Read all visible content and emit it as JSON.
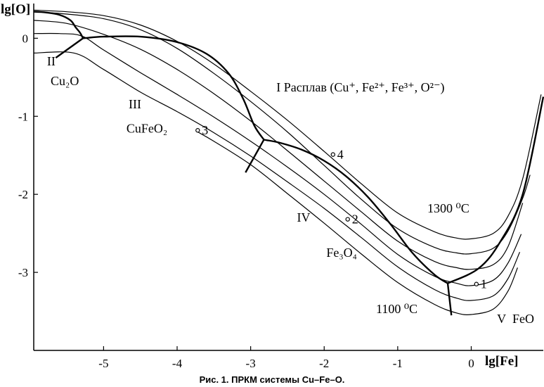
{
  "chart_data": {
    "type": "line",
    "xlabel": "lg[Fe]",
    "ylabel": "lg[O]",
    "xlim": [
      -5.95,
      0.98
    ],
    "ylim": [
      -4.0,
      0.4
    ],
    "x_ticks": [
      -5,
      -4,
      -3,
      -2,
      -1,
      0
    ],
    "x_tick_labels": [
      "-5",
      "-4",
      "-3",
      "-2",
      "-1",
      "0"
    ],
    "y_ticks": [
      0,
      -1,
      -2,
      -3
    ],
    "y_tick_labels": [
      "0",
      "-1",
      "-2",
      "-3"
    ],
    "grid": false,
    "isotherm_labels": {
      "top": "1300 ⁰C",
      "bottom": "1100 ⁰C"
    },
    "isotherms": [
      {
        "x": [
          -5.95,
          -5.5,
          -5.0,
          -4.5,
          -4.0,
          -3.5,
          -3.0,
          -2.5,
          -2.0,
          -1.5,
          -1.0,
          -0.5,
          -0.2,
          0.0,
          0.3,
          0.5,
          0.7,
          0.95
        ],
        "y": [
          0.36,
          0.34,
          0.29,
          0.17,
          -0.04,
          -0.33,
          -0.68,
          -1.05,
          -1.45,
          -1.86,
          -2.24,
          -2.48,
          -2.56,
          -2.57,
          -2.5,
          -2.28,
          -1.8,
          -0.72
        ]
      },
      {
        "x": [
          -5.95,
          -5.5,
          -5.0,
          -4.5,
          -4.0,
          -3.5,
          -3.0,
          -2.5,
          -2.0,
          -1.5,
          -1.0,
          -0.5,
          -0.2,
          0.0,
          0.3,
          0.5,
          0.7,
          0.8
        ],
        "y": [
          0.34,
          0.31,
          0.25,
          0.11,
          -0.13,
          -0.45,
          -0.81,
          -1.2,
          -1.63,
          -2.06,
          -2.44,
          -2.68,
          -2.75,
          -2.76,
          -2.69,
          -2.47,
          -2.05,
          -1.75
        ]
      },
      {
        "x": [
          -5.95,
          -5.5,
          -5.0,
          -4.5,
          -4.0,
          -3.5,
          -3.0,
          -2.5,
          -2.0,
          -1.5,
          -1.0,
          -0.5,
          -0.2,
          0.0,
          0.3,
          0.5,
          0.7
        ],
        "y": [
          0.23,
          0.19,
          0.05,
          -0.14,
          -0.4,
          -0.71,
          -1.06,
          -1.44,
          -1.83,
          -2.22,
          -2.6,
          -2.86,
          -2.94,
          -2.96,
          -2.9,
          -2.67,
          -2.11
        ]
      },
      {
        "x": [
          -5.95,
          -5.6,
          -5.3,
          -5.0,
          -4.5,
          -4.0,
          -3.5,
          -3.0,
          -2.5,
          -2.0,
          -1.5,
          -1.0,
          -0.5,
          -0.2,
          0.0,
          0.3,
          0.5,
          0.68
        ],
        "y": [
          0.06,
          0.06,
          0.03,
          -0.15,
          -0.44,
          -0.72,
          -1.01,
          -1.32,
          -1.65,
          -2.0,
          -2.38,
          -2.77,
          -3.05,
          -3.14,
          -3.17,
          -3.1,
          -2.88,
          -2.51
        ]
      },
      {
        "x": [
          -5.95,
          -5.4,
          -5.0,
          -4.5,
          -4.0,
          -3.5,
          -3.0,
          -2.5,
          -2.0,
          -1.5,
          -1.0,
          -0.5,
          -0.2,
          0.0,
          0.3,
          0.5,
          0.66
        ],
        "y": [
          -0.19,
          -0.19,
          -0.4,
          -0.69,
          -0.94,
          -1.21,
          -1.51,
          -1.84,
          -2.18,
          -2.55,
          -2.93,
          -3.22,
          -3.33,
          -3.36,
          -3.3,
          -3.08,
          -2.74
        ]
      },
      {
        "x": [
          -3.72,
          -3.5,
          -3.0,
          -2.5,
          -2.0,
          -1.5,
          -1.0,
          -0.5,
          -0.2,
          0.0,
          0.3,
          0.5,
          0.63
        ],
        "y": [
          -1.2,
          -1.32,
          -1.62,
          -1.99,
          -2.37,
          -2.76,
          -3.13,
          -3.41,
          -3.52,
          -3.54,
          -3.47,
          -3.24,
          -2.94
        ]
      }
    ],
    "phase_boundaries": [
      {
        "x": [
          -5.95,
          -5.78,
          -5.6,
          -5.45,
          -5.38,
          -5.32,
          -5.28
        ],
        "y": [
          0.34,
          0.33,
          0.3,
          0.23,
          0.14,
          0.07,
          0.0
        ]
      },
      {
        "x": [
          -5.28,
          -5.0,
          -4.5,
          -4.0,
          -3.6,
          -3.3,
          -3.1,
          -2.95,
          -2.82
        ],
        "y": [
          0.0,
          0.02,
          0.02,
          -0.05,
          -0.2,
          -0.45,
          -0.78,
          -1.12,
          -1.3
        ]
      },
      {
        "x": [
          -5.28,
          -5.65
        ],
        "y": [
          0.0,
          -0.25
        ]
      },
      {
        "x": [
          -2.82,
          -3.07
        ],
        "y": [
          -1.3,
          -1.72
        ]
      },
      {
        "x": [
          -2.82,
          -2.6,
          -2.3,
          -2.0,
          -1.7,
          -1.4,
          -1.1,
          -0.8,
          -0.5,
          -0.32
        ],
        "y": [
          -1.3,
          -1.34,
          -1.43,
          -1.57,
          -1.77,
          -2.04,
          -2.38,
          -2.75,
          -3.03,
          -3.14
        ]
      },
      {
        "x": [
          -0.32,
          -0.27
        ],
        "y": [
          -3.14,
          -3.55
        ]
      },
      {
        "x": [
          -0.32,
          0.1,
          0.4,
          0.7,
          0.98
        ],
        "y": [
          -3.14,
          -2.95,
          -2.6,
          -2.0,
          -0.75
        ]
      }
    ],
    "points": [
      {
        "label": "1",
        "x": 0.07,
        "y": -3.15
      },
      {
        "label": "2",
        "x": -1.68,
        "y": -2.32
      },
      {
        "label": "3",
        "x": -3.72,
        "y": -1.18
      },
      {
        "label": "4",
        "x": -1.88,
        "y": -1.49
      }
    ],
    "regions": [
      {
        "label": "I Расплав (Cu⁺, Fe²⁺, Fe³⁺, O²⁻)",
        "x": -2.65,
        "y": -0.68
      },
      {
        "label": "II",
        "x": -5.77,
        "y": -0.35
      },
      {
        "label": "Cu₂O",
        "x": -5.72,
        "y": -0.6
      },
      {
        "label": "III",
        "x": -4.66,
        "y": -0.9
      },
      {
        "label": "CuFeO₂",
        "x": -4.69,
        "y": -1.21
      },
      {
        "label": "IV",
        "x": -2.37,
        "y": -2.35
      },
      {
        "label": "Fe₃O₄",
        "x": -1.97,
        "y": -2.8
      },
      {
        "label": "V",
        "x": 0.35,
        "y": -3.65
      },
      {
        "label": "FeO",
        "x": 0.56,
        "y": -3.65
      }
    ],
    "caption": "Рис. 1. ПРКМ системы Cu–Fe–O."
  }
}
